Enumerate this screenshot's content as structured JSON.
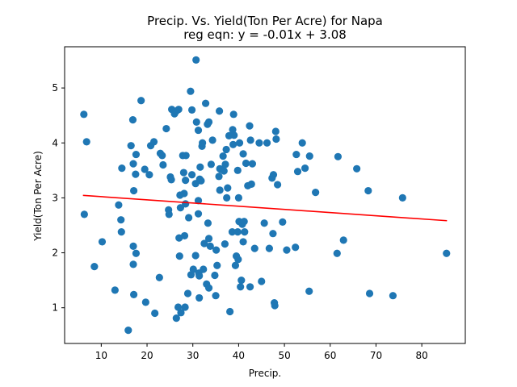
{
  "chart_data": {
    "type": "scatter",
    "title": "Precip. Vs. Yield(Ton Per Acre) for Napa",
    "subtitle": "reg eqn: y = -0.01x + 3.08",
    "xlabel": "Precip.",
    "ylabel": "Yield(Ton Per Acre)",
    "xlim": [
      2.0,
      89.5
    ],
    "ylim": [
      0.35,
      5.75
    ],
    "xticks": [
      10,
      20,
      30,
      40,
      50,
      60,
      70,
      80
    ],
    "yticks": [
      1,
      2,
      3,
      4,
      5
    ],
    "grid": false,
    "point_color": "#1f77b4",
    "line_color": "#ff0000",
    "regression": {
      "slope": -0.0058,
      "intercept": 3.08,
      "x_range": [
        6.0,
        85.5
      ]
    },
    "points": [
      [
        6.2,
        4.52
      ],
      [
        6.3,
        2.7
      ],
      [
        6.8,
        4.02
      ],
      [
        8.5,
        1.75
      ],
      [
        10.2,
        2.2
      ],
      [
        13.0,
        1.32
      ],
      [
        13.8,
        2.87
      ],
      [
        14.3,
        2.6
      ],
      [
        14.4,
        2.38
      ],
      [
        14.5,
        3.54
      ],
      [
        15.9,
        0.59
      ],
      [
        16.5,
        3.95
      ],
      [
        16.9,
        4.42
      ],
      [
        17.0,
        3.62
      ],
      [
        17.1,
        3.13
      ],
      [
        17.0,
        2.12
      ],
      [
        17.0,
        1.79
      ],
      [
        17.1,
        1.24
      ],
      [
        17.5,
        3.43
      ],
      [
        17.6,
        3.79
      ],
      [
        17.6,
        1.99
      ],
      [
        18.7,
        4.77
      ],
      [
        19.5,
        3.52
      ],
      [
        19.7,
        1.1
      ],
      [
        20.5,
        3.42
      ],
      [
        20.8,
        3.95
      ],
      [
        21.5,
        4.02
      ],
      [
        21.7,
        0.9
      ],
      [
        22.7,
        1.55
      ],
      [
        22.9,
        3.81
      ],
      [
        23.3,
        3.77
      ],
      [
        23.5,
        3.6
      ],
      [
        24.2,
        4.26
      ],
      [
        24.7,
        2.78
      ],
      [
        24.8,
        2.7
      ],
      [
        25.1,
        3.38
      ],
      [
        25.3,
        3.33
      ],
      [
        25.4,
        4.61
      ],
      [
        26.0,
        4.53
      ],
      [
        26.4,
        4.58
      ],
      [
        26.4,
        0.81
      ],
      [
        26.8,
        1.01
      ],
      [
        26.9,
        4.61
      ],
      [
        27.0,
        2.27
      ],
      [
        27.1,
        1.94
      ],
      [
        27.2,
        3.05
      ],
      [
        27.3,
        2.82
      ],
      [
        27.4,
        0.91
      ],
      [
        27.8,
        3.77
      ],
      [
        28.0,
        3.46
      ],
      [
        28.1,
        3.08
      ],
      [
        28.2,
        2.31
      ],
      [
        28.3,
        1.01
      ],
      [
        28.4,
        3.32
      ],
      [
        28.4,
        2.89
      ],
      [
        28.5,
        3.77
      ],
      [
        28.9,
        1.26
      ],
      [
        29.1,
        2.64
      ],
      [
        29.5,
        4.94
      ],
      [
        29.6,
        1.6
      ],
      [
        29.8,
        4.6
      ],
      [
        29.8,
        3.42
      ],
      [
        30.1,
        1.7
      ],
      [
        30.6,
        1.95
      ],
      [
        30.6,
        3.26
      ],
      [
        30.7,
        5.51
      ],
      [
        30.8,
        4.38
      ],
      [
        31.2,
        4.23
      ],
      [
        31.2,
        2.71
      ],
      [
        31.2,
        2.95
      ],
      [
        31.3,
        1.63
      ],
      [
        31.4,
        1.58
      ],
      [
        31.4,
        1.18
      ],
      [
        31.5,
        3.34
      ],
      [
        31.6,
        3.56
      ],
      [
        31.8,
        3.31
      ],
      [
        32.0,
        3.94
      ],
      [
        32.1,
        4.0
      ],
      [
        32.3,
        1.7
      ],
      [
        32.5,
        2.17
      ],
      [
        32.8,
        4.72
      ],
      [
        33.0,
        1.43
      ],
      [
        33.2,
        4.34
      ],
      [
        33.3,
        2.54
      ],
      [
        33.5,
        4.38
      ],
      [
        33.5,
        1.36
      ],
      [
        33.5,
        2.26
      ],
      [
        33.8,
        2.12
      ],
      [
        34.0,
        3.61
      ],
      [
        34.3,
        4.05
      ],
      [
        34.8,
        1.59
      ],
      [
        35.0,
        1.22
      ],
      [
        35.1,
        2.05
      ],
      [
        35.3,
        1.77
      ],
      [
        35.7,
        3.39
      ],
      [
        35.8,
        4.58
      ],
      [
        35.9,
        3.53
      ],
      [
        35.9,
        3.14
      ],
      [
        36.1,
        3.52
      ],
      [
        36.6,
        3.76
      ],
      [
        36.8,
        3.49
      ],
      [
        37.0,
        2.16
      ],
      [
        37.1,
        3.61
      ],
      [
        37.3,
        3.88
      ],
      [
        37.4,
        3.0
      ],
      [
        37.6,
        3.18
      ],
      [
        37.9,
        4.13
      ],
      [
        38.1,
        0.93
      ],
      [
        38.6,
        2.38
      ],
      [
        38.7,
        4.24
      ],
      [
        38.8,
        3.97
      ],
      [
        38.9,
        4.52
      ],
      [
        39.0,
        4.14
      ],
      [
        39.3,
        1.77
      ],
      [
        39.5,
        1.94
      ],
      [
        39.8,
        2.38
      ],
      [
        39.8,
        3.5
      ],
      [
        39.9,
        1.88
      ],
      [
        40.0,
        3.0
      ],
      [
        40.1,
        2.57
      ],
      [
        40.2,
        4.0
      ],
      [
        40.4,
        1.38
      ],
      [
        40.6,
        1.5
      ],
      [
        40.8,
        2.52
      ],
      [
        41.0,
        2.2
      ],
      [
        41.0,
        3.8
      ],
      [
        41.2,
        2.57
      ],
      [
        41.3,
        2.38
      ],
      [
        41.6,
        3.63
      ],
      [
        42.0,
        3.22
      ],
      [
        42.4,
        4.31
      ],
      [
        42.5,
        1.38
      ],
      [
        42.6,
        4.05
      ],
      [
        42.8,
        3.25
      ],
      [
        43.0,
        3.62
      ],
      [
        43.5,
        2.08
      ],
      [
        44.5,
        4.0
      ],
      [
        45.0,
        1.48
      ],
      [
        45.6,
        2.54
      ],
      [
        46.2,
        4.0
      ],
      [
        46.7,
        2.08
      ],
      [
        47.3,
        3.36
      ],
      [
        47.5,
        2.35
      ],
      [
        47.6,
        3.42
      ],
      [
        47.8,
        1.09
      ],
      [
        47.9,
        1.04
      ],
      [
        48.1,
        4.21
      ],
      [
        48.2,
        4.07
      ],
      [
        48.5,
        3.24
      ],
      [
        49.6,
        2.56
      ],
      [
        50.5,
        2.05
      ],
      [
        52.4,
        2.1
      ],
      [
        52.6,
        3.79
      ],
      [
        52.9,
        3.48
      ],
      [
        53.9,
        4.0
      ],
      [
        54.5,
        3.54
      ],
      [
        55.4,
        1.3
      ],
      [
        55.5,
        3.76
      ],
      [
        56.8,
        3.1
      ],
      [
        61.5,
        1.99
      ],
      [
        61.7,
        3.75
      ],
      [
        62.9,
        2.23
      ],
      [
        65.8,
        3.53
      ],
      [
        68.3,
        3.13
      ],
      [
        68.6,
        1.26
      ],
      [
        73.7,
        1.22
      ],
      [
        75.8,
        3.0
      ],
      [
        85.4,
        1.99
      ]
    ]
  }
}
